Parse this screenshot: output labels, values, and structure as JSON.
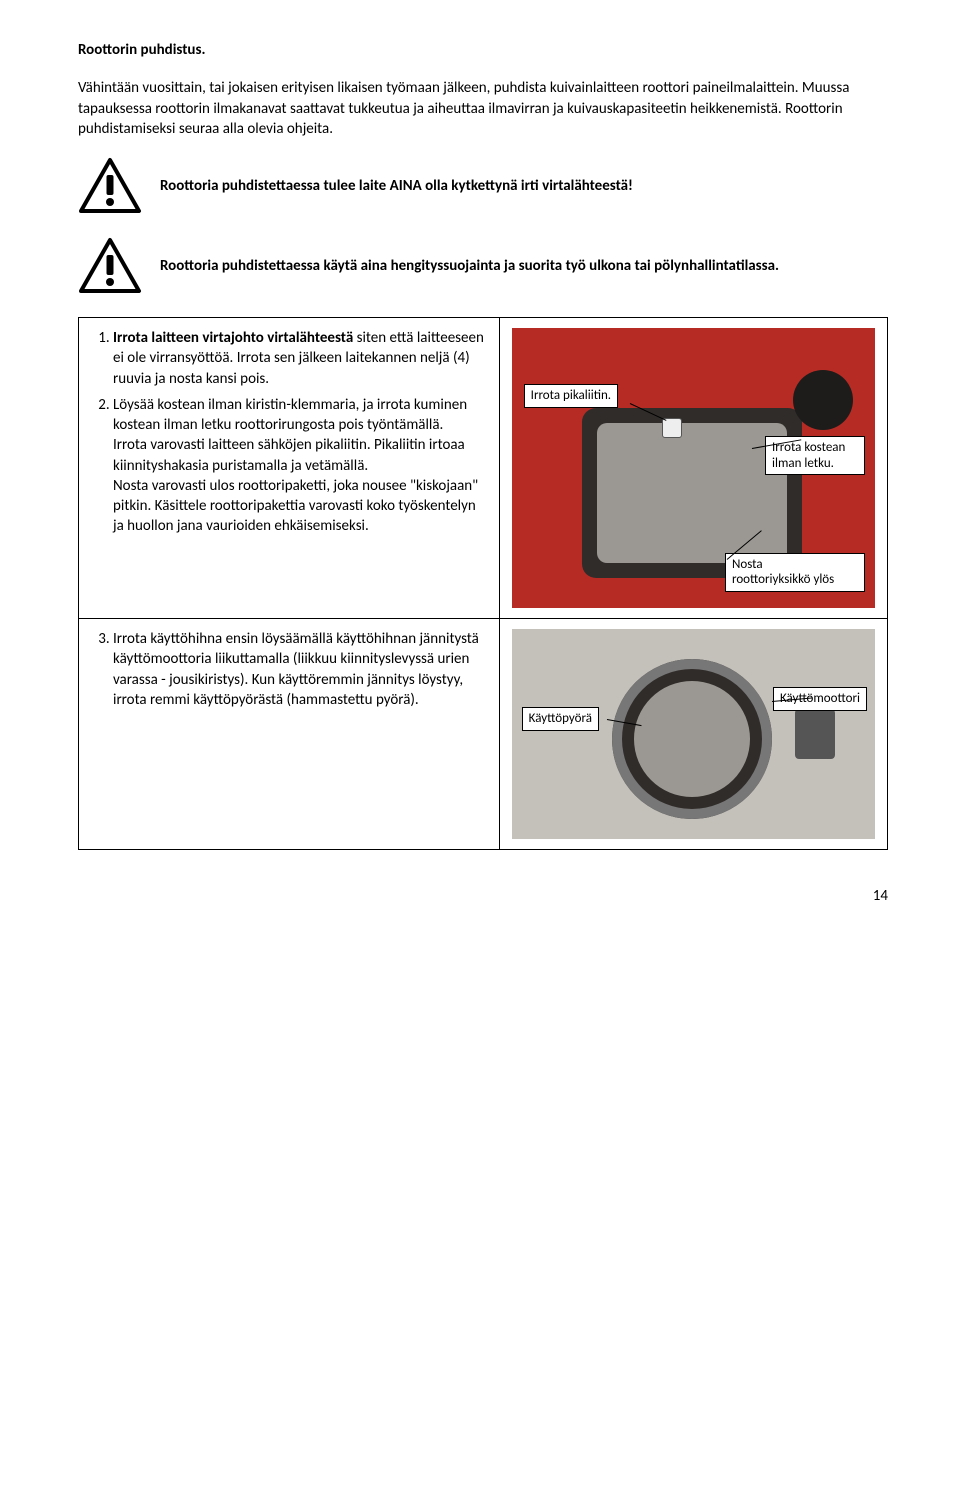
{
  "title": "Roottorin puhdistus.",
  "intro": "Vähintään vuosittain, tai jokaisen erityisen likaisen työmaan jälkeen, puhdista kuivainlaitteen roottori paineilmalaittein. Muussa tapauksessa roottorin ilmakanavat saattavat tukkeutua ja aiheuttaa ilmavirran ja kuivauskapasiteetin heikkenemistä. Roottorin puhdistamiseksi seuraa alla olevia ohjeita.",
  "warning1": "Roottoria puhdistettaessa tulee laite AINA olla kytkettynä irti virtalähteestä!",
  "warning2": "Roottoria puhdistettaessa käytä aina hengityssuojainta ja suorita työ ulkona tai pölynhallintatilassa.",
  "step1_bold": "Irrota laitteen virtajohto virtalähteestä",
  "step1_rest": " siten että laitteeseen ei ole virransyöttöä. Irrota sen jälkeen laitekannen neljä (4) ruuvia ja nosta kansi pois.",
  "step2_a": "Löysää kostean ilman kiristin-klemmaria, ja irrota kuminen kostean ilman letku roottorirungosta pois työntämällä.",
  "step2_b": "Irrota varovasti laitteen sähköjen pikaliitin. Pikaliitin irtoaa kiinnityshakasia puristamalla ja vetämällä.",
  "step2_c": "Nosta varovasti ulos roottoripaketti, joka nousee \"kiskojaan\" pitkin. Käsittele roottoripakettia varovasti koko työskentelyn ja huollon jana vaurioiden ehkäisemiseksi.",
  "step3": "Irrota käyttöhihna ensin löysäämällä käyttöhihnan jännitystä käyttömoottoria liikuttamalla (liikkuu kiinnityslevyssä urien varassa - jousikiristys). Kun käyttöremmin jännitys löystyy, irrota remmi käyttöpyörästä (hammastettu pyörä).",
  "callouts": {
    "pikaliitin": "Irrota pikaliitin.",
    "letku1": "Irrota kostean",
    "letku2": "ilman letku.",
    "nosta1": "Nosta",
    "nosta2": "roottoriyksikkö ylös",
    "kayttopyora": "Käyttöpyörä",
    "kayttomoottori": "Käyttömoottori"
  },
  "page": "14",
  "colors": {
    "red": "#b72b25",
    "dark": "#302c2a",
    "metal": "#9b9893",
    "bellows": "#1d1c1a"
  }
}
